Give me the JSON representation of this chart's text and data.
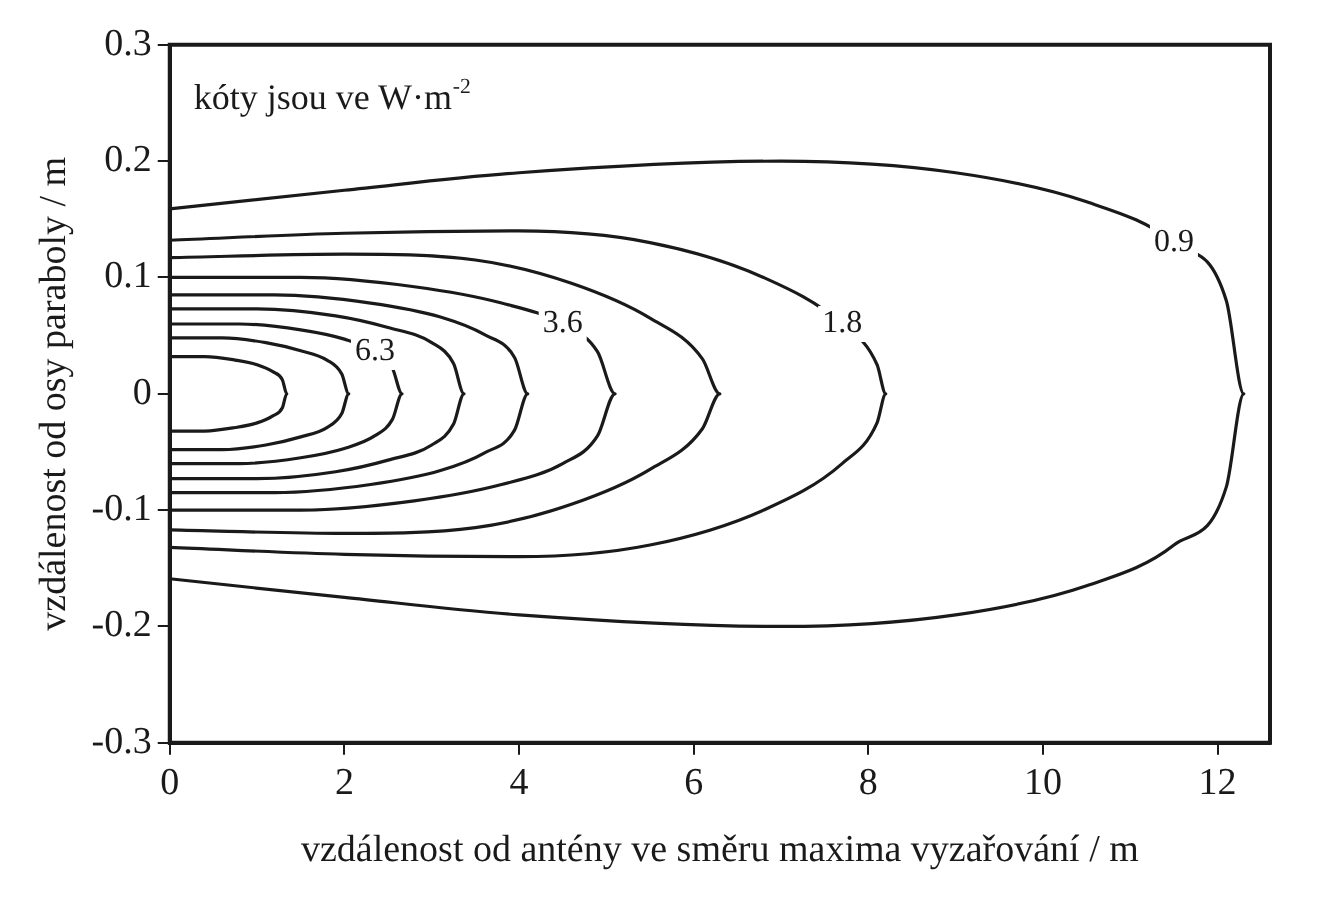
{
  "chart_data": {
    "type": "line",
    "xlabel": "vzdálenost od antény ve směru maxima vyzařování / m",
    "ylabel": "vzdálenost od osy paraboly / m",
    "annotations": [
      "kóty jsou ve W·m$^{-2}$"
    ],
    "xlim": [
      0,
      12.6
    ],
    "xticks": [
      0,
      2,
      4,
      6,
      8,
      10,
      12
    ],
    "ylim": [
      -0.3,
      0.3
    ],
    "yticks": [
      -0.3,
      -0.2,
      -0.1,
      0,
      0.1,
      0.2,
      0.3
    ],
    "grid": false,
    "legend": false,
    "marker": "none",
    "line_style": "solid",
    "series": [
      {
        "name": "0.9",
        "color": "#1a1a1a",
        "x": [
          0,
          2,
          4,
          7,
          9,
          10.5,
          11.5,
          12.1,
          12.3,
          12.1,
          11.5,
          10.5,
          9,
          7,
          4,
          2,
          0
        ],
        "values": [
          0.159,
          0.175,
          0.19,
          0.2,
          0.19,
          0.165,
          0.13,
          0.08,
          0,
          -0.08,
          -0.13,
          -0.165,
          -0.19,
          -0.2,
          -0.19,
          -0.175,
          -0.159
        ]
      },
      {
        "name": "1.8",
        "color": "#1a1a1a",
        "x": [
          0,
          2,
          4,
          5.5,
          6.8,
          7.7,
          8.1,
          8.2,
          8.1,
          7.7,
          6.8,
          5.5,
          4,
          2,
          0
        ],
        "values": [
          0.132,
          0.138,
          0.14,
          0.13,
          0.1,
          0.06,
          0.025,
          0,
          -0.025,
          -0.06,
          -0.1,
          -0.13,
          -0.14,
          -0.138,
          -0.132
        ]
      },
      {
        "color": "#1a1a1a",
        "x": [
          0,
          2,
          3.5,
          4.6,
          5.5,
          6.1,
          6.3,
          6.1,
          5.5,
          4.6,
          3.5,
          2,
          0
        ],
        "values": [
          0.117,
          0.12,
          0.115,
          0.095,
          0.065,
          0.03,
          0,
          -0.03,
          -0.065,
          -0.095,
          -0.115,
          -0.12,
          -0.117
        ]
      },
      {
        "name": "3.6",
        "color": "#1a1a1a",
        "x": [
          0,
          1.5,
          2.8,
          3.8,
          4.5,
          4.9,
          5.1,
          4.9,
          4.5,
          3.8,
          2.8,
          1.5,
          0
        ],
        "values": [
          0.1,
          0.1,
          0.092,
          0.078,
          0.06,
          0.036,
          0,
          -0.036,
          -0.06,
          -0.078,
          -0.092,
          -0.1,
          -0.1
        ]
      },
      {
        "color": "#1a1a1a",
        "x": [
          0,
          1.2,
          2.3,
          3.1,
          3.6,
          3.95,
          4.1,
          3.95,
          3.6,
          3.1,
          2.3,
          1.2,
          0
        ],
        "values": [
          0.085,
          0.085,
          0.078,
          0.066,
          0.051,
          0.031,
          0,
          -0.031,
          -0.051,
          -0.066,
          -0.078,
          -0.085,
          -0.085
        ]
      },
      {
        "color": "#1a1a1a",
        "x": [
          0,
          1,
          1.9,
          2.5,
          3,
          3.25,
          3.37,
          3.25,
          3,
          2.5,
          1.9,
          1,
          0
        ],
        "values": [
          0.073,
          0.073,
          0.067,
          0.057,
          0.044,
          0.026,
          0,
          -0.026,
          -0.044,
          -0.057,
          -0.067,
          -0.073,
          -0.073
        ]
      },
      {
        "name": "6.3",
        "color": "#1a1a1a",
        "x": [
          0,
          0.8,
          1.5,
          2,
          2.35,
          2.55,
          2.66,
          2.55,
          2.35,
          2,
          1.5,
          0.8,
          0
        ],
        "values": [
          0.06,
          0.06,
          0.055,
          0.047,
          0.036,
          0.022,
          0,
          -0.022,
          -0.036,
          -0.047,
          -0.055,
          -0.06,
          -0.06
        ]
      },
      {
        "color": "#1a1a1a",
        "x": [
          0,
          0.6,
          1.1,
          1.5,
          1.8,
          1.97,
          2.05,
          1.97,
          1.8,
          1.5,
          1.1,
          0.6,
          0
        ],
        "values": [
          0.048,
          0.048,
          0.044,
          0.037,
          0.029,
          0.017,
          0,
          -0.017,
          -0.029,
          -0.037,
          -0.044,
          -0.048,
          -0.048
        ]
      },
      {
        "color": "#1a1a1a",
        "x": [
          0,
          0.4,
          0.75,
          1,
          1.18,
          1.29,
          1.34,
          1.29,
          1.18,
          1,
          0.75,
          0.4,
          0
        ],
        "values": [
          0.032,
          0.032,
          0.029,
          0.025,
          0.019,
          0.012,
          0,
          -0.012,
          -0.019,
          -0.025,
          -0.029,
          -0.032,
          -0.032
        ]
      }
    ]
  }
}
